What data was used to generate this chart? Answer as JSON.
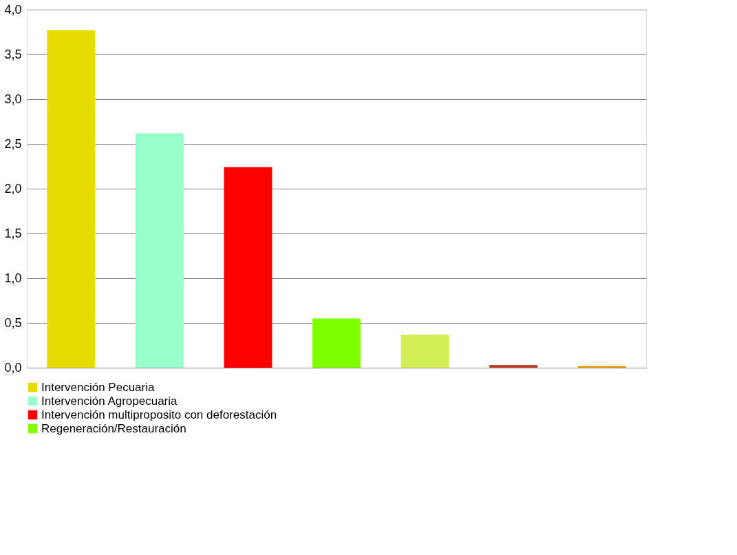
{
  "chart_data": {
    "type": "bar",
    "categories": [
      null,
      null,
      null,
      null,
      null,
      null,
      null
    ],
    "series": [
      {
        "name": "Intervención Pecuaria",
        "color": "#e6dc00",
        "values": [
          3.77,
          null,
          null,
          null,
          null,
          null,
          null
        ]
      },
      {
        "name": "Intervención Agropecuaria",
        "color": "#99ffcc",
        "values": [
          null,
          2.62,
          null,
          null,
          null,
          null,
          null
        ]
      },
      {
        "name": "Intervención multiproposito con deforestación",
        "color": "#ff0000",
        "values": [
          null,
          null,
          2.24,
          null,
          null,
          null,
          null
        ]
      },
      {
        "name": "Regeneración/Restauración",
        "color": "#80ff00",
        "values": [
          null,
          null,
          null,
          0.55,
          null,
          null,
          null
        ]
      },
      {
        "color": "#d4ee55",
        "values": [
          null,
          null,
          null,
          null,
          0.37,
          null,
          null
        ]
      },
      {
        "color": "#c0432b",
        "values": [
          null,
          null,
          null,
          null,
          null,
          0.03,
          null
        ]
      },
      {
        "color": "#e8a000",
        "values": [
          null,
          null,
          null,
          null,
          null,
          null,
          0.02
        ]
      }
    ],
    "ylim": [
      0,
      4
    ],
    "yticks": [
      {
        "value": 0,
        "label": "0,0"
      },
      {
        "value": 0.5,
        "label": "0,5"
      },
      {
        "value": 1,
        "label": "1,0"
      },
      {
        "value": 1.5,
        "label": "1,5"
      },
      {
        "value": 2,
        "label": "2,0"
      },
      {
        "value": 2.5,
        "label": "2,5"
      },
      {
        "value": 3,
        "label": "3,0"
      },
      {
        "value": 3.5,
        "label": "3,5"
      },
      {
        "value": 4,
        "label": "4,0"
      }
    ],
    "grid": "y",
    "legend": "bottom"
  }
}
